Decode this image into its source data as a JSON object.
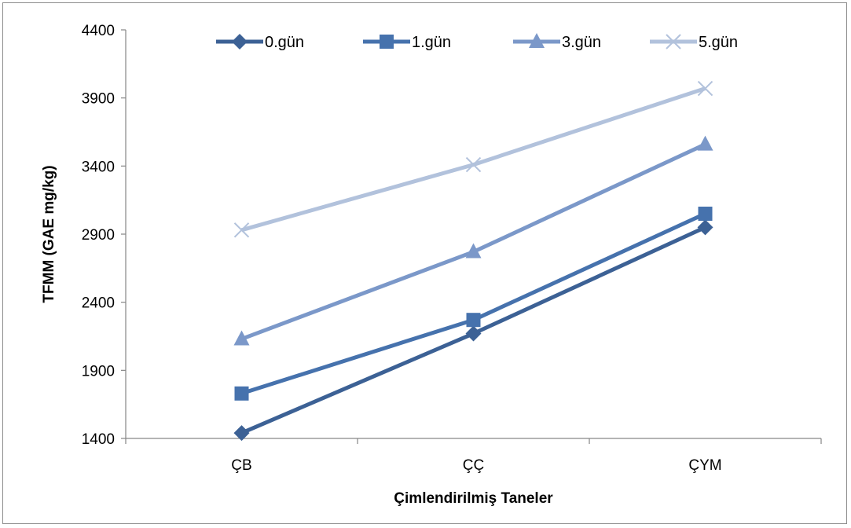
{
  "chart_data": {
    "type": "line",
    "title": "",
    "xlabel": "Çimlendirilmiş Taneler",
    "ylabel": "TFMM (GAE mg/kg)",
    "categories": [
      "ÇB",
      "ÇÇ",
      "ÇYM"
    ],
    "ylim": [
      1400,
      4400
    ],
    "yticks": [
      "1400",
      "1900",
      "2400",
      "2900",
      "3400",
      "3900",
      "4400"
    ],
    "grid": false,
    "legend_position": "top",
    "series": [
      {
        "name": "0.gün",
        "values": [
          1440,
          2170,
          2950
        ],
        "color": "#3c6195",
        "marker": "diamond"
      },
      {
        "name": "1.gün",
        "values": [
          1730,
          2270,
          3050
        ],
        "color": "#4672ad",
        "marker": "square"
      },
      {
        "name": "3.gün",
        "values": [
          2130,
          2770,
          3560
        ],
        "color": "#7b98c9",
        "marker": "triangle"
      },
      {
        "name": "5.gün",
        "values": [
          2930,
          3410,
          3970
        ],
        "color": "#b2c2dc",
        "marker": "x"
      }
    ]
  }
}
